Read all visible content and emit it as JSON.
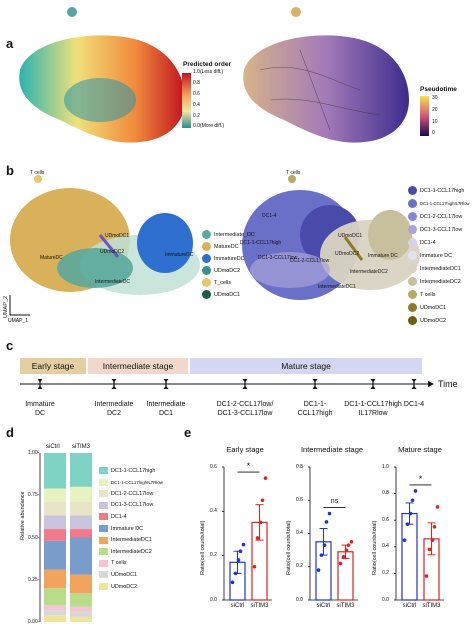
{
  "panels": {
    "a": {
      "letter": "a",
      "legend_left": {
        "title": "Predicted order",
        "ticks": [
          "1.0(Less diff.)",
          "0.8",
          "0.6",
          "0.4",
          "0.2",
          "0.0(More diff.)"
        ]
      },
      "legend_right": {
        "title": "Pseudotime",
        "ticks": [
          "30",
          "20",
          "10",
          "0"
        ]
      }
    },
    "b": {
      "letter": "b",
      "left_labels": [
        "T cells",
        "UDmoDC1",
        "UDmoDC2",
        "MatureDC",
        "ImmatureDC",
        "IntermediateDC"
      ],
      "left_legend": [
        {
          "label": "Intermediate_DC",
          "color": "#5aa99b"
        },
        {
          "label": "MatureDC",
          "color": "#d9b15a"
        },
        {
          "label": "ImmatureDC",
          "color": "#2e6fd0"
        },
        {
          "label": "UDmoDC2",
          "color": "#3d8e8e"
        },
        {
          "label": "T_cells",
          "color": "#e8c76a"
        },
        {
          "label": "UDmoDC1",
          "color": "#1f5a4a"
        }
      ],
      "right_labels": [
        "T cells",
        "DC1-4",
        "DC1-1-CCL17high",
        "DC1-2-CCL17low",
        "DC1-3-CCL17low",
        "IntermediateDC1",
        "IntermediateDC2",
        "UDmoDC1",
        "UDmoDC2",
        "Immature DC"
      ],
      "right_legend": [
        {
          "label": "DC1-1-CCL17high",
          "color": "#4a4aaa"
        },
        {
          "label": "DC1-1-CCL17highIL7Rlow",
          "color": "#6a6fc8"
        },
        {
          "label": "DC1-2-CCL17low",
          "color": "#8a86cf"
        },
        {
          "label": "DC1-3-CCL17low",
          "color": "#a8a3d8"
        },
        {
          "label": "DC1-4",
          "color": "#d6d2ec"
        },
        {
          "label": "Immature DC",
          "color": "#e4e1ef"
        },
        {
          "label": "IntermediateDC1",
          "color": "#d9d3c2"
        },
        {
          "label": "IntermediateDC2",
          "color": "#c8bf9c"
        },
        {
          "label": "T cells",
          "color": "#b7a865"
        },
        {
          "label": "UDmoDC1",
          "color": "#8c7a2a"
        },
        {
          "label": "UDmoDC2",
          "color": "#6e5e14"
        }
      ],
      "umap_x": "UMAP_1",
      "umap_y": "UMAP_2"
    },
    "c": {
      "letter": "c",
      "stages": [
        "Early stage",
        "Intermediate stage",
        "Mature stage"
      ],
      "time_label": "Time",
      "timeline": [
        {
          "label": "Immature\nDC"
        },
        {
          "label": "Intermediate\nDC2"
        },
        {
          "label": "Intermediate\nDC1"
        },
        {
          "label": "DC1-2-CCL17low/\nDC1-3-CCL17low"
        },
        {
          "label": "DC1-1-\nCCL17high"
        },
        {
          "label": "DC1-1-CCL17high\nIL17Rlow"
        },
        {
          "label": "DC1-4"
        }
      ]
    },
    "d": {
      "letter": "d",
      "ylabel": "Relative abundance",
      "yticks": [
        "1.00-",
        "0.75-",
        "0.50-",
        "0.25-",
        "0.00-"
      ],
      "categories": [
        "siCtrl",
        "siTIM3"
      ],
      "legend": [
        {
          "label": "DC1-1-CCL17high",
          "color": "#7fd3c4"
        },
        {
          "label": "DC1-1-CCL17highIL7Rlow",
          "color": "#e6f2c0"
        },
        {
          "label": "DC1-2-CCL17low",
          "color": "#e8e4c8"
        },
        {
          "label": "DC1-3-CCL17low",
          "color": "#c9c3dd"
        },
        {
          "label": "DC1-4",
          "color": "#f07a8a"
        },
        {
          "label": "Immature DC",
          "color": "#7a9ccb"
        },
        {
          "label": "IntermediateDC1",
          "color": "#f2a35e"
        },
        {
          "label": "IntermediateDC2",
          "color": "#b9dc8a"
        },
        {
          "label": "T cells",
          "color": "#f4c3d4"
        },
        {
          "label": "UDmoDC1",
          "color": "#d8d8d8"
        },
        {
          "label": "UDmoDC2",
          "color": "#f0e49a"
        }
      ]
    },
    "e": {
      "letter": "e",
      "ylabel": "Ratio(cell counts/total)"
    }
  },
  "chart_data": [
    {
      "type": "bar",
      "title": "",
      "stacked": true,
      "categories": [
        "siCtrl",
        "siTIM3"
      ],
      "ylabel": "Relative abundance",
      "ylim": [
        0,
        1
      ],
      "series": [
        {
          "name": "UDmoDC2",
          "values": [
            0.04,
            0.03
          ]
        },
        {
          "name": "UDmoDC1",
          "values": [
            0.03,
            0.03
          ]
        },
        {
          "name": "T cells",
          "values": [
            0.03,
            0.03
          ]
        },
        {
          "name": "IntermediateDC2",
          "values": [
            0.1,
            0.08
          ]
        },
        {
          "name": "IntermediateDC1",
          "values": [
            0.11,
            0.11
          ]
        },
        {
          "name": "Immature DC",
          "values": [
            0.17,
            0.22
          ]
        },
        {
          "name": "DC1-4",
          "values": [
            0.07,
            0.05
          ]
        },
        {
          "name": "DC1-3-CCL17low",
          "values": [
            0.08,
            0.08
          ]
        },
        {
          "name": "DC1-2-CCL17low",
          "values": [
            0.08,
            0.08
          ]
        },
        {
          "name": "DC1-1-CCL17highIL7Rlow",
          "values": [
            0.08,
            0.09
          ]
        },
        {
          "name": "DC1-1-CCL17high",
          "values": [
            0.21,
            0.2
          ]
        }
      ],
      "colors": [
        "#f0e49a",
        "#d8d8d8",
        "#f4c3d4",
        "#b9dc8a",
        "#f2a35e",
        "#7a9ccb",
        "#f07a8a",
        "#c9c3dd",
        "#e8e4c8",
        "#e6f2c0",
        "#7fd3c4"
      ]
    },
    {
      "type": "bar",
      "title": "Early stage",
      "categories": [
        "siCtrl",
        "siTIM3"
      ],
      "values": [
        0.17,
        0.35
      ],
      "errors": [
        0.05,
        0.08
      ],
      "points": [
        [
          0.08,
          0.12,
          0.18,
          0.22,
          0.25
        ],
        [
          0.15,
          0.28,
          0.35,
          0.45,
          0.55
        ]
      ],
      "significance": "*",
      "ylabel": "Ratio(cell counts/total)",
      "ylim": [
        0,
        0.6
      ],
      "yticks": [
        "0.0",
        "0.2",
        "0.4",
        "0.6"
      ],
      "colors": [
        "#2233cc",
        "#dd2222"
      ]
    },
    {
      "type": "bar",
      "title": "Intermediate stage",
      "categories": [
        "siCtrl",
        "siTIM3"
      ],
      "values": [
        0.35,
        0.29
      ],
      "errors": [
        0.08,
        0.04
      ],
      "points": [
        [
          0.18,
          0.27,
          0.33,
          0.47,
          0.52
        ],
        [
          0.22,
          0.26,
          0.3,
          0.33,
          0.35
        ]
      ],
      "significance": "ns",
      "ylim": [
        0,
        0.8
      ],
      "yticks": [
        "0.0",
        "0.2",
        "0.4",
        "0.6",
        "0.8"
      ],
      "colors": [
        "#2233cc",
        "#dd2222"
      ]
    },
    {
      "type": "bar",
      "title": "Mature stage",
      "categories": [
        "siCtrl",
        "siTIM3"
      ],
      "values": [
        0.65,
        0.46
      ],
      "errors": [
        0.08,
        0.12
      ],
      "points": [
        [
          0.45,
          0.57,
          0.65,
          0.75,
          0.82
        ],
        [
          0.18,
          0.38,
          0.45,
          0.55,
          0.7
        ]
      ],
      "significance": "*",
      "ylim": [
        0,
        1.0
      ],
      "yticks": [
        "0.0",
        "0.2",
        "0.4",
        "0.6",
        "0.8",
        "1.0"
      ],
      "colors": [
        "#2233cc",
        "#dd2222"
      ]
    }
  ]
}
